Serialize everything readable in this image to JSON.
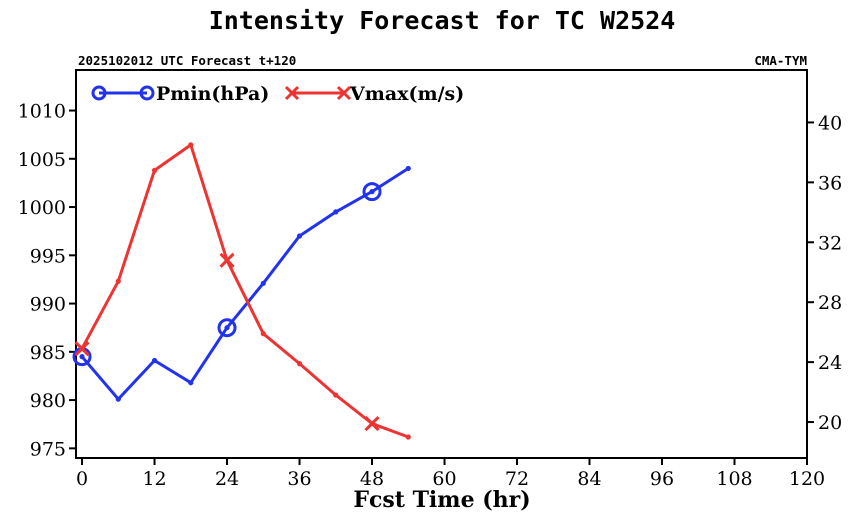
{
  "chart_data": {
    "type": "line",
    "title": "Intensity Forecast for TC W2524",
    "subtitle_left": "2025102012 UTC Forecast t+120",
    "subtitle_right": "CMA-TYM",
    "xlabel": "Fcst Time (hr)",
    "x_ticks": [
      0,
      12,
      24,
      36,
      48,
      60,
      72,
      84,
      96,
      108,
      120
    ],
    "x_tick_labels": [
      "0",
      "12",
      "24",
      "36",
      "48",
      "60",
      "72",
      "84",
      "96",
      "108",
      "120"
    ],
    "xlim": [
      -1,
      120
    ],
    "y_left_ticks": [
      975,
      980,
      985,
      990,
      995,
      1000,
      1005,
      1010
    ],
    "y_left_tick_labels": [
      "975",
      "980",
      "985",
      "990",
      "995",
      "1000",
      "1005",
      "1010"
    ],
    "ylim_left": [
      974.0,
      1014.2
    ],
    "y_right_ticks": [
      20,
      24,
      28,
      32,
      36,
      40
    ],
    "y_right_tick_labels": [
      "20",
      "24",
      "28",
      "32",
      "36",
      "40"
    ],
    "ylim_right": [
      17.6,
      43.5
    ],
    "legend_position": "top-left",
    "series": [
      {
        "name": "Pmin(hPa)",
        "axis": "left",
        "color": "#2233ee",
        "marker": "circle",
        "x": [
          0,
          6,
          12,
          18,
          24,
          30,
          36,
          42,
          48,
          54
        ],
        "values": [
          984.5,
          980.1,
          984.1,
          981.8,
          987.5,
          992.1,
          997.0,
          999.5,
          1001.6,
          1004.0
        ],
        "marked_at": [
          0,
          24,
          48
        ]
      },
      {
        "name": "Vmax(m/s)",
        "axis": "right",
        "color": "#ee3333",
        "marker": "x",
        "x": [
          0,
          6,
          12,
          18,
          24,
          30,
          36,
          42,
          48,
          54
        ],
        "values": [
          24.9,
          29.4,
          36.8,
          38.5,
          30.8,
          25.9,
          23.9,
          21.8,
          19.9,
          19.0
        ],
        "marked_at": [
          0,
          24,
          48
        ]
      }
    ]
  }
}
